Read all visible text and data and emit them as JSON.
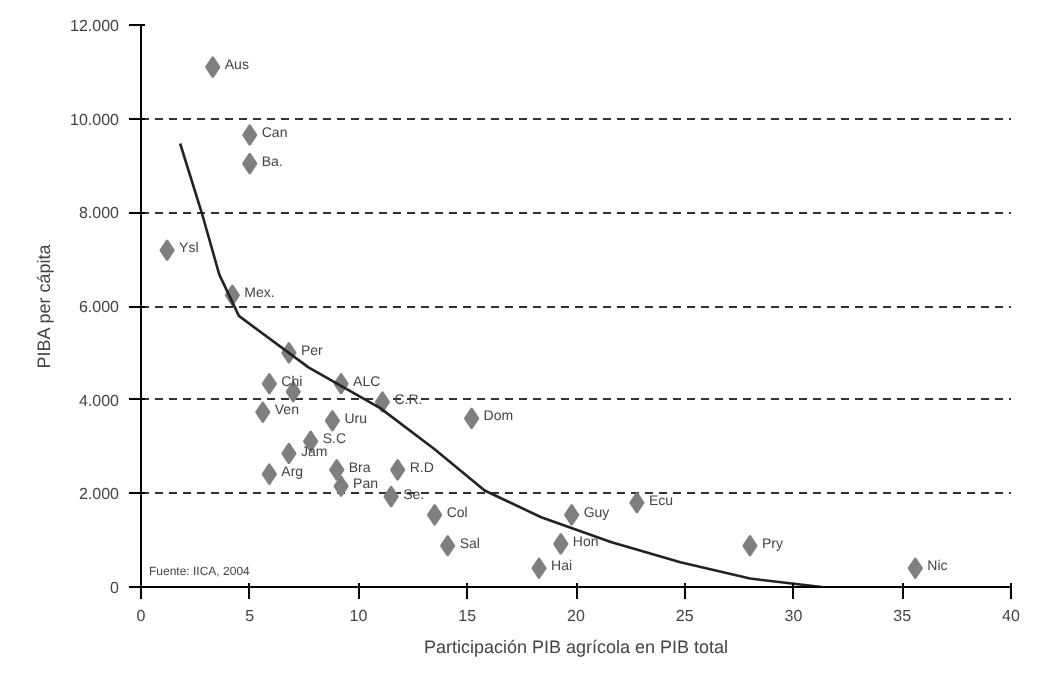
{
  "chart_data": {
    "type": "scatter",
    "xlabel": "Participación PIB agrícola en PIB total",
    "ylabel": "PIBA per cápita",
    "xlim": [
      0,
      40
    ],
    "xticks": [
      0,
      5,
      10,
      15,
      20,
      25,
      30,
      35,
      40
    ],
    "ylim": [
      0,
      12000
    ],
    "yticks": [
      {
        "value": 0,
        "label": "0"
      },
      {
        "value": 2000,
        "label": "2.000"
      },
      {
        "value": 4000,
        "label": "4.000"
      },
      {
        "value": 6000,
        "label": "6.000"
      },
      {
        "value": 8000,
        "label": "8.000"
      },
      {
        "value": 10000,
        "label": "10.000"
      },
      {
        "value": 12000,
        "label": "12.000"
      }
    ],
    "grid": "y",
    "series": [
      {
        "marker": "diamond",
        "color": "#7f7f7f",
        "x": [
          3.3,
          5.0,
          5.0,
          1.2,
          4.2,
          6.8,
          5.9,
          7.0,
          9.2,
          11.1,
          5.6,
          8.8,
          7.8,
          6.8,
          5.9,
          9.0,
          9.2,
          11.8,
          11.5,
          13.5,
          14.1,
          15.2,
          19.8,
          22.8,
          19.3,
          18.3,
          28.0,
          35.6
        ],
        "values": [
          11100,
          9650,
          9040,
          7190,
          6230,
          5000,
          4340,
          4170,
          4340,
          3950,
          3730,
          3550,
          3110,
          2850,
          2410,
          2500,
          2150,
          2500,
          1930,
          1540,
          880,
          3600,
          1540,
          1800,
          920,
          400,
          880,
          400
        ]
      },
      {
        "type": "line",
        "color": "#222222",
        "x": [
          1.8,
          2.8,
          3.6,
          4.5,
          7.7,
          11.0,
          13.5,
          15.8,
          18.4,
          21.6,
          24.8,
          28.0,
          31.3
        ],
        "values": [
          9470,
          7980,
          6670,
          5790,
          4690,
          3820,
          2940,
          2060,
          1490,
          960,
          530,
          180,
          0
        ]
      }
    ],
    "annotations": [
      {
        "text": "Aus",
        "x": 3.3,
        "y": 11100
      },
      {
        "text": "Can",
        "x": 5.0,
        "y": 9650
      },
      {
        "text": "Ba.",
        "x": 5.0,
        "y": 9040
      },
      {
        "text": "Ysl",
        "x": 1.2,
        "y": 7190
      },
      {
        "text": "Mex.",
        "x": 4.2,
        "y": 6230
      },
      {
        "text": "Per",
        "x": 6.8,
        "y": 5000
      },
      {
        "text": "Chi",
        "x": 5.9,
        "y": 4340
      },
      {
        "text": "ALC",
        "x": 9.2,
        "y": 4340
      },
      {
        "text": "C.R.",
        "x": 11.1,
        "y": 3950
      },
      {
        "text": "Ven",
        "x": 5.6,
        "y": 3730
      },
      {
        "text": "Uru",
        "x": 8.8,
        "y": 3550
      },
      {
        "text": "S.C",
        "x": 7.8,
        "y": 3110
      },
      {
        "text": "Jam",
        "x": 6.8,
        "y": 2850
      },
      {
        "text": "Arg",
        "x": 5.9,
        "y": 2410
      },
      {
        "text": "Bra",
        "x": 9.0,
        "y": 2500
      },
      {
        "text": "R.D",
        "x": 11.8,
        "y": 2500
      },
      {
        "text": "Pan",
        "x": 9.2,
        "y": 2150
      },
      {
        "text": "Se.",
        "x": 11.5,
        "y": 1930
      },
      {
        "text": "Col",
        "x": 13.5,
        "y": 1540
      },
      {
        "text": "Sal",
        "x": 14.1,
        "y": 880
      },
      {
        "text": "Dom",
        "x": 15.2,
        "y": 3600
      },
      {
        "text": "Guy",
        "x": 19.8,
        "y": 1540
      },
      {
        "text": "Ecu",
        "x": 22.8,
        "y": 1800
      },
      {
        "text": "Hon",
        "x": 19.3,
        "y": 920
      },
      {
        "text": "Hai",
        "x": 18.3,
        "y": 400
      },
      {
        "text": "Pry",
        "x": 28.0,
        "y": 880
      },
      {
        "text": "Nic",
        "x": 35.6,
        "y": 400
      },
      "Fuente: IICA, 2004"
    ]
  }
}
